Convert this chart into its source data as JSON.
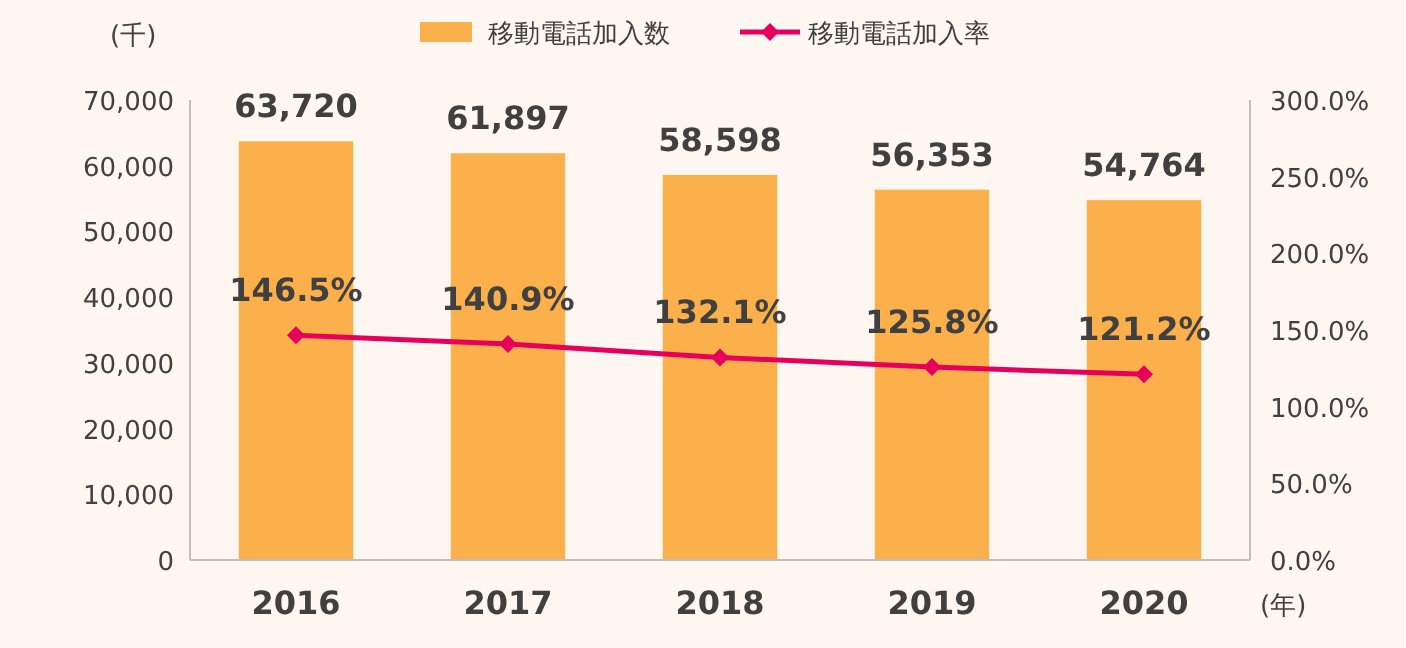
{
  "chart_data": {
    "type": "bar",
    "ylabel": "(千)",
    "xlabel": "(年)",
    "categories": [
      "2016",
      "2017",
      "2018",
      "2019",
      "2020"
    ],
    "series": [
      {
        "name": "移動電話加入数",
        "color": "#fbb04b",
        "values": [
          63720,
          61897,
          58598,
          56353,
          54764
        ],
        "value_labels": [
          "63,720",
          "61,897",
          "58,598",
          "56,353",
          "54,764"
        ]
      },
      {
        "name": "移動電話加入率",
        "type": "line",
        "axis": "y2",
        "color": "#e6005c",
        "marker": "diamond",
        "values": [
          146.5,
          140.9,
          132.1,
          125.8,
          121.2
        ],
        "value_labels": [
          "146.5%",
          "140.9%",
          "132.1%",
          "125.8%",
          "121.2%"
        ]
      }
    ],
    "ylim": [
      0,
      70000
    ],
    "yticks": [
      0,
      {
        "value": 10000,
        "label": "10,000"
      },
      {
        "value": 20000,
        "label": "20,000"
      },
      {
        "value": 30000,
        "label": "30,000"
      },
      {
        "value": 40000,
        "label": "40,000"
      },
      {
        "value": 50000,
        "label": "50,000"
      },
      {
        "value": 60000,
        "label": "60,000"
      },
      {
        "value": 70000,
        "label": "70,000"
      }
    ],
    "y2lim": [
      0,
      300
    ],
    "y2ticks": [
      {
        "value": 0,
        "label": "0.0%"
      },
      {
        "value": 50,
        "label": "50.0%"
      },
      {
        "value": 100,
        "label": "100.0%"
      },
      {
        "value": 150,
        "label": "150.0%"
      },
      {
        "value": 200,
        "label": "200.0%"
      },
      {
        "value": 250,
        "label": "250.0%"
      },
      {
        "value": 300,
        "label": "300.0%"
      }
    ],
    "legend": "top",
    "grid": false
  }
}
